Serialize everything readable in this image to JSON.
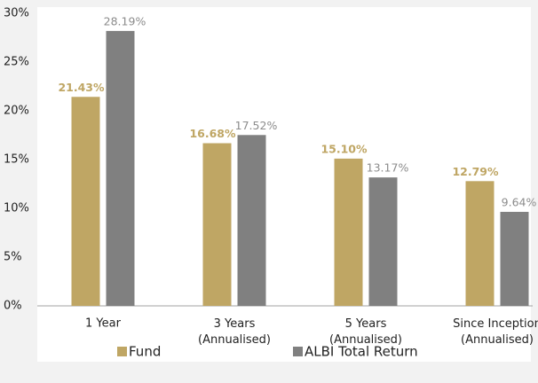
{
  "chart_data": {
    "type": "bar",
    "categories": [
      "1 Year",
      "3 Years\n(Annualised)",
      "5 Years\n(Annualised)",
      "Since Inception\n(Annualised)"
    ],
    "series": [
      {
        "name": "Fund",
        "color": "#bfa664",
        "values": [
          21.43,
          16.68,
          15.1,
          12.79
        ],
        "value_labels": [
          "21.43%",
          "16.68%",
          "15.10%",
          "12.79%"
        ]
      },
      {
        "name": "ALBI Total Return",
        "color": "#808080",
        "values": [
          28.19,
          17.52,
          13.17,
          9.64
        ],
        "value_labels": [
          "28.19%",
          "17.52%",
          "13.17%",
          "9.64%"
        ]
      }
    ],
    "ylim": [
      0,
      30
    ],
    "yticks": [
      {
        "value": 0,
        "label": "0%"
      },
      {
        "value": 5,
        "label": "5%"
      },
      {
        "value": 10,
        "label": "10%"
      },
      {
        "value": 15,
        "label": "15%"
      },
      {
        "value": 20,
        "label": "20%"
      },
      {
        "value": 25,
        "label": "25%"
      },
      {
        "value": 30,
        "label": "30%"
      }
    ],
    "grid": false
  }
}
